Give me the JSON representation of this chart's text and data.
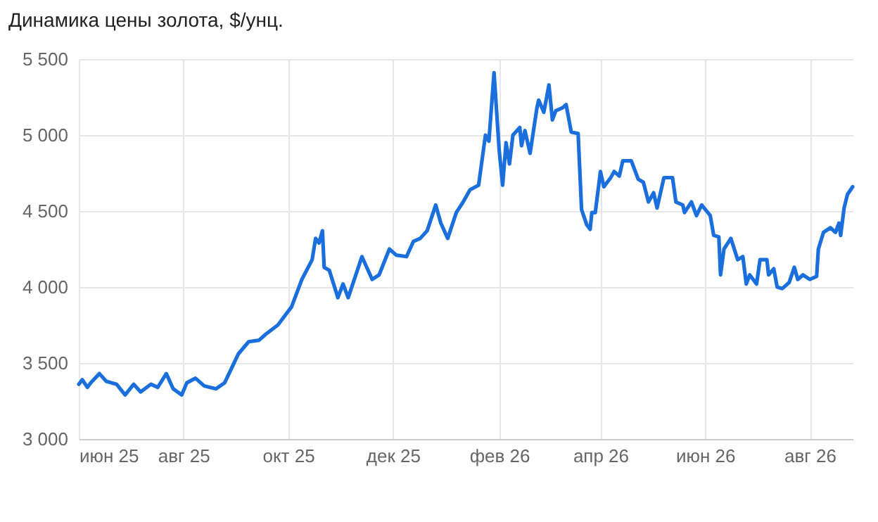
{
  "chart_data": {
    "type": "line",
    "title": "Динамика цены золота, $/унц.",
    "x": [
      "2025-06-01",
      "2025-06-03",
      "2025-06-06",
      "2025-06-08",
      "2025-06-13",
      "2025-06-17",
      "2025-06-23",
      "2025-06-28",
      "2025-07-03",
      "2025-07-07",
      "2025-07-13",
      "2025-07-17",
      "2025-07-22",
      "2025-07-26",
      "2025-07-31",
      "2025-08-03",
      "2025-08-08",
      "2025-08-13",
      "2025-08-20",
      "2025-08-25",
      "2025-09-02",
      "2025-09-08",
      "2025-09-14",
      "2025-09-18",
      "2025-09-25",
      "2025-10-03",
      "2025-10-09",
      "2025-10-15",
      "2025-10-17",
      "2025-10-19",
      "2025-10-21",
      "2025-10-22",
      "2025-10-25",
      "2025-10-30",
      "2025-11-02",
      "2025-11-05",
      "2025-11-13",
      "2025-11-19",
      "2025-11-23",
      "2025-11-29",
      "2025-12-03",
      "2025-12-09",
      "2025-12-13",
      "2025-12-17",
      "2025-12-21",
      "2025-12-26",
      "2025-12-29",
      "2026-01-02",
      "2026-01-07",
      "2026-01-11",
      "2026-01-15",
      "2026-01-20",
      "2026-01-24",
      "2026-01-26",
      "2026-01-29",
      "2026-02-01",
      "2026-02-03",
      "2026-02-05",
      "2026-02-07",
      "2026-02-09",
      "2026-02-13",
      "2026-02-14",
      "2026-02-16",
      "2026-02-19",
      "2026-02-23",
      "2026-02-24",
      "2026-02-27",
      "2026-03-02",
      "2026-03-04",
      "2026-03-06",
      "2026-03-10",
      "2026-03-12",
      "2026-03-15",
      "2026-03-19",
      "2026-03-21",
      "2026-03-24",
      "2026-03-26",
      "2026-03-27",
      "2026-03-29",
      "2026-04-01",
      "2026-04-03",
      "2026-04-07",
      "2026-04-09",
      "2026-04-12",
      "2026-04-14",
      "2026-04-19",
      "2026-04-23",
      "2026-04-26",
      "2026-04-29",
      "2026-05-02",
      "2026-05-04",
      "2026-05-08",
      "2026-05-13",
      "2026-05-15",
      "2026-05-19",
      "2026-05-20",
      "2026-05-24",
      "2026-05-27",
      "2026-05-30",
      "2026-06-04",
      "2026-06-06",
      "2026-06-09",
      "2026-06-10",
      "2026-06-12",
      "2026-06-16",
      "2026-06-20",
      "2026-06-23",
      "2026-06-25",
      "2026-06-27",
      "2026-07-01",
      "2026-07-03",
      "2026-07-07",
      "2026-07-08",
      "2026-07-11",
      "2026-07-13",
      "2026-07-16",
      "2026-07-20",
      "2026-07-23",
      "2026-07-25",
      "2026-07-28",
      "2026-08-01",
      "2026-08-05",
      "2026-08-06",
      "2026-08-09",
      "2026-08-13",
      "2026-08-16",
      "2026-08-18",
      "2026-08-19",
      "2026-08-21",
      "2026-08-23",
      "2026-08-26"
    ],
    "series": [
      {
        "color": "#1a6fdc",
        "values": [
          3360,
          3390,
          3340,
          3370,
          3430,
          3380,
          3360,
          3290,
          3360,
          3310,
          3360,
          3340,
          3430,
          3330,
          3290,
          3370,
          3400,
          3350,
          3330,
          3370,
          3560,
          3640,
          3650,
          3690,
          3750,
          3870,
          4050,
          4180,
          4320,
          4290,
          4370,
          4130,
          4110,
          3930,
          4020,
          3930,
          4200,
          4050,
          4080,
          4250,
          4210,
          4200,
          4300,
          4320,
          4370,
          4540,
          4420,
          4320,
          4490,
          4560,
          4640,
          4670,
          5000,
          4960,
          5410,
          4900,
          4670,
          4950,
          4810,
          5000,
          5050,
          4930,
          5030,
          4880,
          5180,
          5230,
          5150,
          5330,
          5100,
          5160,
          5180,
          5200,
          5020,
          5010,
          4510,
          4410,
          4380,
          4490,
          4490,
          4760,
          4660,
          4720,
          4760,
          4730,
          4830,
          4830,
          4710,
          4690,
          4560,
          4620,
          4520,
          4720,
          4720,
          4560,
          4540,
          4490,
          4560,
          4470,
          4540,
          4470,
          4340,
          4330,
          4080,
          4250,
          4320,
          4180,
          4200,
          4020,
          4080,
          4020,
          4180,
          4180,
          4080,
          4120,
          4000,
          3990,
          4030,
          4130,
          4050,
          4080,
          4050,
          4070,
          4250,
          4360,
          4390,
          4360,
          4420,
          4340,
          4520,
          4610,
          4660
        ]
      }
    ],
    "xlim": [
      "2025-06-01",
      "2026-08-26"
    ],
    "xticks": [
      {
        "value": "2025-06-01",
        "label": "июн 25"
      },
      {
        "value": "2025-08-01",
        "label": "авг 25"
      },
      {
        "value": "2025-10-01",
        "label": "окт 25"
      },
      {
        "value": "2025-12-01",
        "label": "дек 25"
      },
      {
        "value": "2026-02-01",
        "label": "фев 26"
      },
      {
        "value": "2026-04-01",
        "label": "апр 26"
      },
      {
        "value": "2026-06-01",
        "label": "июн 26"
      },
      {
        "value": "2026-08-01",
        "label": "авг 26"
      }
    ],
    "ylim": [
      3000,
      5500
    ],
    "yticks": [
      {
        "value": 3000,
        "label": "3 000"
      },
      {
        "value": 3500,
        "label": "3 500"
      },
      {
        "value": 4000,
        "label": "4 000"
      },
      {
        "value": 4500,
        "label": "4 500"
      },
      {
        "value": 5000,
        "label": "5 000"
      },
      {
        "value": 5500,
        "label": "5 500"
      }
    ],
    "grid": true,
    "line_style": "solid",
    "marker": "none"
  }
}
